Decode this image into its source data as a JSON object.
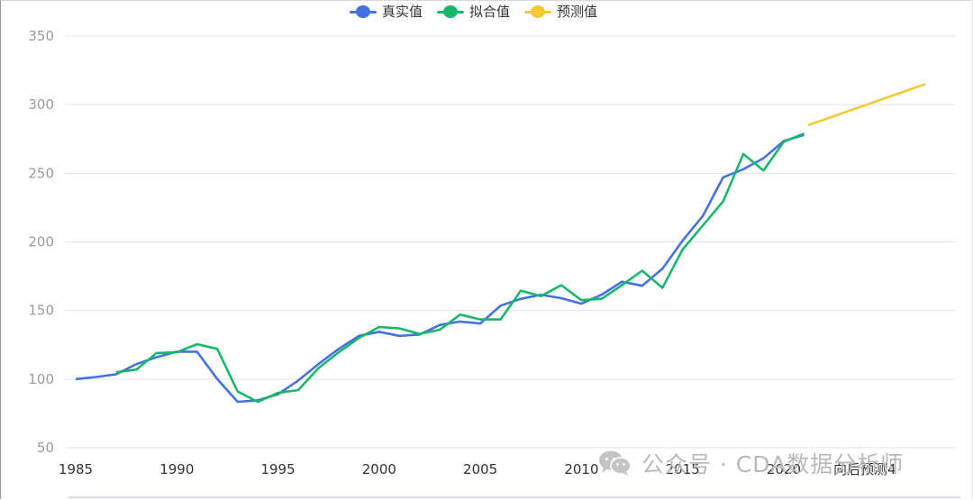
{
  "chart_data": {
    "type": "line",
    "title": "",
    "xlabel": "",
    "ylabel": "",
    "ylim": [
      50,
      350
    ],
    "yticks": [
      50,
      100,
      150,
      200,
      250,
      300,
      350
    ],
    "xlim": [
      1985,
      2027
    ],
    "xticks": [
      {
        "x": 1985,
        "label": "1985"
      },
      {
        "x": 1990,
        "label": "1990"
      },
      {
        "x": 1995,
        "label": "1995"
      },
      {
        "x": 2000,
        "label": "2000"
      },
      {
        "x": 2005,
        "label": "2005"
      },
      {
        "x": 2010,
        "label": "2010"
      },
      {
        "x": 2015,
        "label": "2015"
      },
      {
        "x": 2020,
        "label": "2020"
      },
      {
        "x": 2024,
        "label": "向后预测4"
      }
    ],
    "grid": true,
    "legend_position": "top-center",
    "series": [
      {
        "name": "真实值",
        "color": "#4472e4",
        "x": [
          1985,
          1986,
          1987,
          1988,
          1989,
          1990,
          1991,
          1992,
          1993,
          1994,
          1995,
          1996,
          1997,
          1998,
          1999,
          2000,
          2001,
          2002,
          2003,
          2004,
          2005,
          2006,
          2007,
          2008,
          2009,
          2010,
          2011,
          2012,
          2013,
          2014,
          2015,
          2016,
          2017,
          2018,
          2019,
          2020,
          2021
        ],
        "values": [
          100,
          101.5,
          103.5,
          111,
          116,
          120,
          120,
          100,
          83.5,
          84.5,
          89,
          99,
          111,
          122,
          131.5,
          134.5,
          131.5,
          132.5,
          139.5,
          142,
          140.5,
          153.5,
          158.5,
          161.5,
          159,
          155,
          161.5,
          171,
          168,
          180.5,
          201,
          219,
          247,
          253,
          261,
          273.5,
          278
        ]
      },
      {
        "name": "拟合值",
        "color": "#17b86a",
        "x": [
          1987,
          1988,
          1989,
          1990,
          1991,
          1992,
          1993,
          1994,
          1995,
          1996,
          1997,
          1998,
          1999,
          2000,
          2001,
          2002,
          2003,
          2004,
          2005,
          2006,
          2007,
          2008,
          2009,
          2010,
          2011,
          2012,
          2013,
          2014,
          2015,
          2016,
          2017,
          2018,
          2019,
          2020,
          2021
        ],
        "values": [
          105,
          107,
          119,
          119.5,
          125.5,
          122,
          91,
          83.5,
          90,
          92,
          108,
          119.5,
          130,
          138,
          137,
          133,
          136,
          147,
          143.5,
          143.5,
          164.5,
          160.5,
          168.5,
          157.5,
          158.5,
          168.5,
          179,
          166.5,
          194.5,
          212,
          229.5,
          264,
          252,
          273,
          279
        ]
      },
      {
        "name": "预测值",
        "color": "#f5c935",
        "x": [
          2021.2,
          2027
        ],
        "values": [
          285,
          315
        ]
      }
    ]
  },
  "watermark": {
    "icon": "wechat-icon",
    "text": "公众号 · CDA数据分析师"
  }
}
